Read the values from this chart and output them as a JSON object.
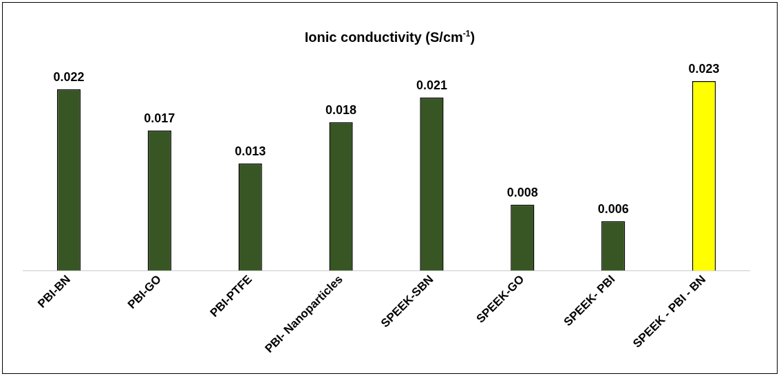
{
  "chart_data": {
    "type": "bar",
    "title": "Ionic conductivity (S/cm$^{-1}$)",
    "categories": [
      "PBI-BN",
      "PBI-GO",
      "PBI-PTFE",
      "PBI- Nanoparticles",
      "SPEEK-SBN",
      "SPEEK-GO",
      "SPEEK- PBI",
      "SPEEK - PBI - BN"
    ],
    "values": [
      0.022,
      0.017,
      0.013,
      0.018,
      0.021,
      0.008,
      0.006,
      0.023
    ],
    "colors": [
      "#375623",
      "#375623",
      "#375623",
      "#375623",
      "#375623",
      "#375623",
      "#375623",
      "#ffff00"
    ],
    "data_labels": true,
    "grid": false,
    "legend": false
  }
}
